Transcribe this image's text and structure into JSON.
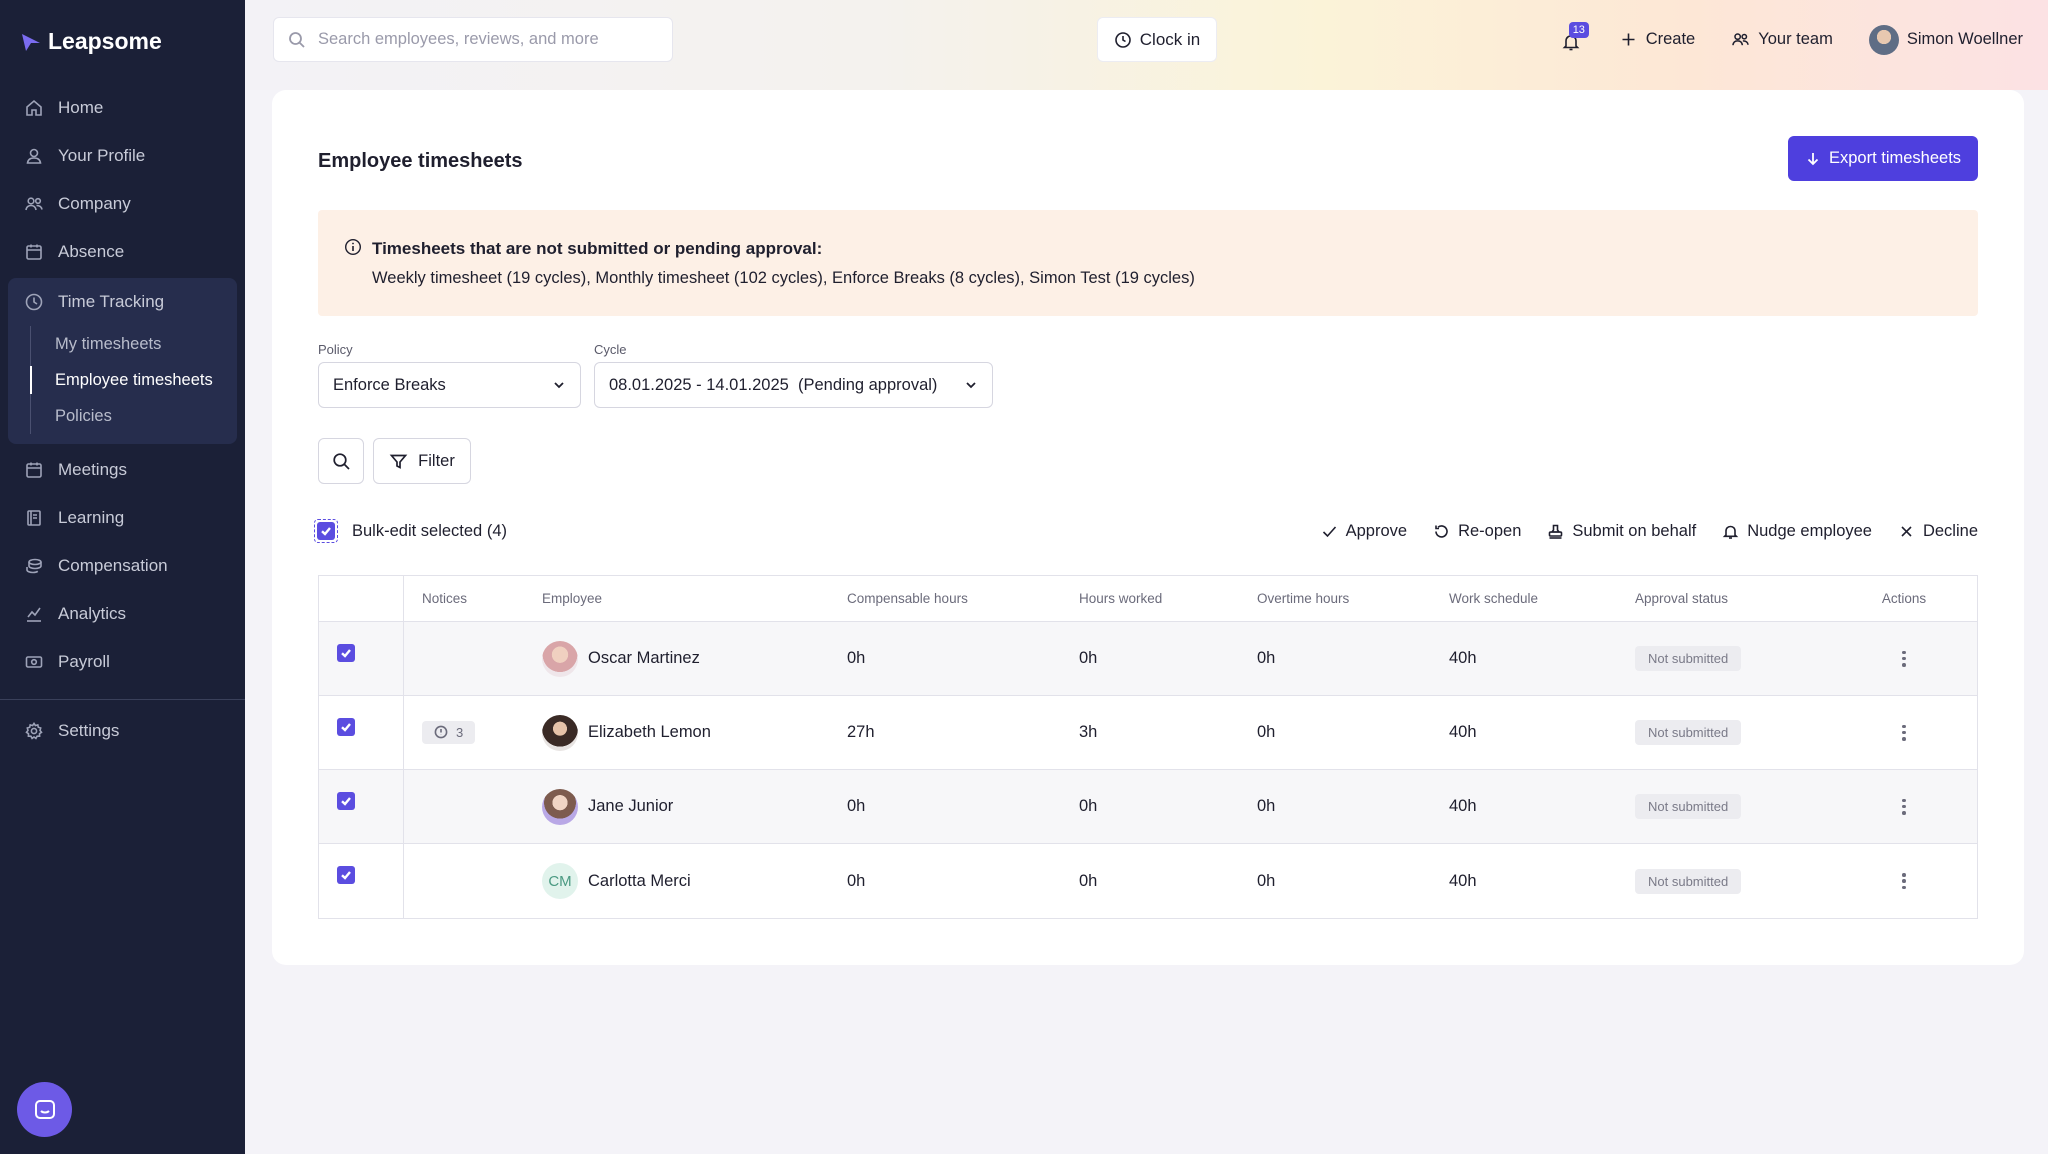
{
  "app": {
    "name": "Leapsome"
  },
  "sidebar": {
    "items": [
      {
        "label": "Home",
        "icon": "home-icon"
      },
      {
        "label": "Your Profile",
        "icon": "user-icon"
      },
      {
        "label": "Company",
        "icon": "users-icon"
      },
      {
        "label": "Absence",
        "icon": "calendar-icon"
      }
    ],
    "time_tracking": {
      "label": "Time Tracking",
      "icon": "clock-icon",
      "sub": [
        "My timesheets",
        "Employee timesheets",
        "Policies"
      ],
      "active": "Employee timesheets"
    },
    "items_lower": [
      {
        "label": "Meetings",
        "icon": "calendar-icon"
      },
      {
        "label": "Learning",
        "icon": "book-icon"
      },
      {
        "label": "Compensation",
        "icon": "coins-icon"
      },
      {
        "label": "Analytics",
        "icon": "chart-icon"
      },
      {
        "label": "Payroll",
        "icon": "money-icon"
      }
    ],
    "settings": {
      "label": "Settings",
      "icon": "gear-icon"
    }
  },
  "topbar": {
    "search_placeholder": "Search employees, reviews, and more",
    "clock_in": "Clock in",
    "notifications_count": "13",
    "create": "Create",
    "your_team": "Your team",
    "user_name": "Simon Woellner"
  },
  "page": {
    "title": "Employee timesheets",
    "export_label": "Export timesheets",
    "notice": {
      "title": "Timesheets that are not submitted or pending approval:",
      "body": "Weekly timesheet (19 cycles), Monthly timesheet (102 cycles), Enforce Breaks (8 cycles), Simon Test (19 cycles)"
    },
    "policy": {
      "label": "Policy",
      "value": "Enforce Breaks"
    },
    "cycle": {
      "label": "Cycle",
      "value": "08.01.2025 - 14.01.2025  (Pending approval)"
    },
    "filter_label": "Filter",
    "bulk": {
      "label": "Bulk-edit selected (4)",
      "actions": {
        "approve": "Approve",
        "reopen": "Re-open",
        "submit_on_behalf": "Submit on behalf",
        "nudge": "Nudge employee",
        "decline": "Decline"
      }
    },
    "table": {
      "headers": {
        "notices": "Notices",
        "employee": "Employee",
        "compensable": "Compensable hours",
        "worked": "Hours worked",
        "overtime": "Overtime hours",
        "schedule": "Work schedule",
        "status": "Approval status",
        "actions": "Actions"
      },
      "rows": [
        {
          "notices": "",
          "employee": "Oscar Martinez",
          "initials": "",
          "compensable": "0h",
          "worked": "0h",
          "overtime": "0h",
          "schedule": "40h",
          "status": "Not submitted"
        },
        {
          "notices": "3",
          "employee": "Elizabeth Lemon",
          "initials": "",
          "compensable": "27h",
          "worked": "3h",
          "overtime": "0h",
          "schedule": "40h",
          "status": "Not submitted"
        },
        {
          "notices": "",
          "employee": "Jane Junior",
          "initials": "",
          "compensable": "0h",
          "worked": "0h",
          "overtime": "0h",
          "schedule": "40h",
          "status": "Not submitted"
        },
        {
          "notices": "",
          "employee": "Carlotta Merci",
          "initials": "CM",
          "compensable": "0h",
          "worked": "0h",
          "overtime": "0h",
          "schedule": "40h",
          "status": "Not submitted"
        }
      ]
    }
  },
  "colors": {
    "accent": "#4e3fde",
    "sidebar_bg": "#1b2037",
    "notice_bg": "#fdf0e6"
  }
}
